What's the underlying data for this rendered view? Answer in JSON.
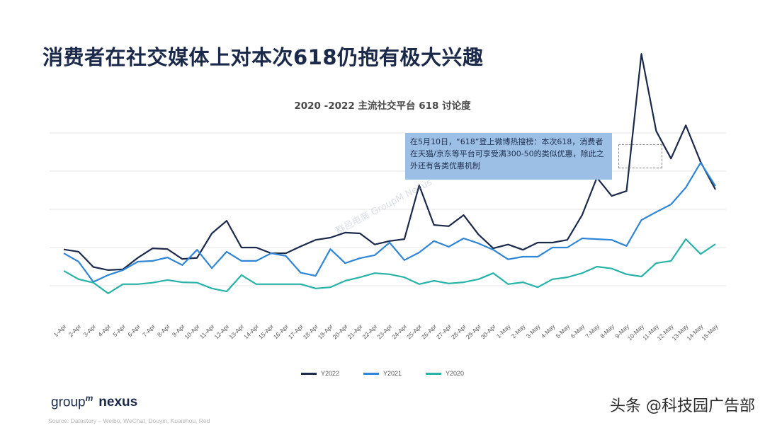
{
  "slide": {
    "title": "消费者在社交媒体上对本次618仍抱有极大兴趣",
    "logo_group": "group",
    "logo_m": "m",
    "logo_nexus": "nexus",
    "source": "Source: Datastory – Weibo, WeChat, Douyin, Kuaishou, Red",
    "corner_watermark": "头条 @科技园广告部",
    "chart_watermark": "群邑电商 GroupM Nexus",
    "colors": {
      "title": "#1b2a4a",
      "annotation_bg": "#9cbfe6"
    }
  },
  "chart_data": {
    "type": "line",
    "title": "2020 -2022 主流社交平台 618 讨论度",
    "xlabel": "",
    "ylabel": "",
    "grid": true,
    "legend_position": "bottom",
    "categories": [
      "1-Apr",
      "2-Apr",
      "3-Apr",
      "4-Apr",
      "5-Apr",
      "6-Apr",
      "7-Apr",
      "8-Apr",
      "9-Apr",
      "10-Apr",
      "11-Apr",
      "12-Apr",
      "13-Apr",
      "14-Apr",
      "15-Apr",
      "16-Apr",
      "17-Apr",
      "18-Apr",
      "19-Apr",
      "20-Apr",
      "21-Apr",
      "22-Apr",
      "23-Apr",
      "24-Apr",
      "25-Apr",
      "26-Apr",
      "27-Apr",
      "28-Apr",
      "29-Apr",
      "30-Apr",
      "1-May",
      "2-May",
      "3-May",
      "4-May",
      "5-May",
      "6-May",
      "7-May",
      "8-May",
      "9-May",
      "10-May",
      "11-May",
      "12-May",
      "13-May",
      "14-May",
      "15-May"
    ],
    "series": [
      {
        "name": "Y2022",
        "color": "#1b2a4a",
        "values": [
          0.95,
          0.89,
          0.49,
          0.41,
          0.43,
          0.73,
          0.98,
          0.96,
          0.7,
          0.73,
          1.37,
          1.7,
          1.0,
          1.0,
          0.85,
          0.85,
          1.03,
          1.2,
          1.26,
          1.39,
          1.37,
          1.08,
          1.17,
          1.22,
          2.63,
          1.59,
          1.56,
          1.85,
          1.34,
          0.98,
          1.08,
          0.94,
          1.13,
          1.13,
          1.2,
          1.85,
          2.83,
          2.35,
          2.48,
          6.07,
          4.05,
          3.33,
          4.2,
          3.24,
          2.52
        ]
      },
      {
        "name": "Y2021",
        "color": "#2f86d6",
        "values": [
          0.85,
          0.63,
          0.1,
          0.28,
          0.41,
          0.63,
          0.65,
          0.74,
          0.54,
          0.94,
          0.46,
          0.89,
          0.65,
          0.65,
          0.85,
          0.78,
          0.34,
          0.26,
          0.96,
          0.59,
          0.72,
          0.8,
          1.13,
          0.67,
          0.87,
          1.17,
          1.02,
          1.24,
          1.11,
          0.94,
          0.69,
          0.76,
          0.76,
          1.0,
          1.0,
          1.24,
          1.22,
          1.2,
          1.04,
          1.72,
          1.93,
          2.13,
          2.57,
          3.22,
          2.61
        ]
      },
      {
        "name": "Y2020",
        "color": "#27b3a8",
        "values": [
          0.39,
          0.17,
          0.08,
          -0.2,
          0.04,
          0.04,
          0.08,
          0.15,
          0.09,
          0.08,
          -0.07,
          -0.15,
          0.28,
          0.04,
          0.04,
          0.04,
          0.04,
          -0.07,
          -0.04,
          0.13,
          0.22,
          0.33,
          0.3,
          0.22,
          0.04,
          0.13,
          0.06,
          0.09,
          0.17,
          0.33,
          0.04,
          0.09,
          -0.04,
          0.17,
          0.22,
          0.33,
          0.5,
          0.45,
          0.3,
          0.24,
          0.59,
          0.65,
          1.22,
          0.83,
          1.09
        ]
      }
    ],
    "annotation": {
      "text": "在5月10日，“618”登上微博热搜榜：本次618，消费者在天猫/京东等平台可享受满300-50的类似优惠，除此之外还有各类优惠机制",
      "target": "10-May"
    }
  }
}
